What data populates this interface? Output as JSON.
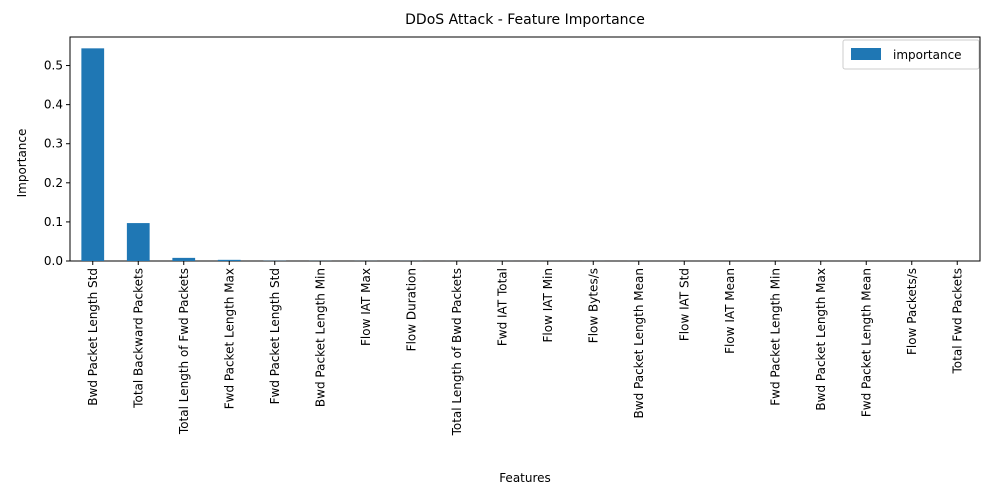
{
  "chart_data": {
    "type": "bar",
    "title": "DDoS Attack - Feature Importance",
    "xlabel": "Features",
    "ylabel": "Importance",
    "ylim": [
      0,
      0.573
    ],
    "yticks": [
      0.0,
      0.1,
      0.2,
      0.3,
      0.4,
      0.5
    ],
    "ytick_labels": [
      "0.0",
      "0.1",
      "0.2",
      "0.3",
      "0.4",
      "0.5"
    ],
    "grid": false,
    "legend": {
      "position": "top-right",
      "entries": [
        "importance"
      ]
    },
    "colors": {
      "bar": "#1f77b4"
    },
    "categories": [
      "Bwd Packet Length Std",
      "Total Backward Packets",
      "Total Length of Fwd Packets",
      "Fwd Packet Length Max",
      "Fwd Packet Length Std",
      "Bwd Packet Length Min",
      "Flow IAT Max",
      "Flow Duration",
      "Total Length of Bwd Packets",
      "Fwd IAT Total",
      "Flow IAT Min",
      "Flow Bytes/s",
      "Bwd Packet Length Mean",
      "Flow IAT Std",
      "Flow IAT Mean",
      "Fwd Packet Length Min",
      "Bwd Packet Length Max",
      "Fwd Packet Length Mean",
      "Flow Packets/s",
      "Total Fwd Packets"
    ],
    "series": [
      {
        "name": "importance",
        "values": [
          0.544,
          0.097,
          0.008,
          0.003,
          0.0005,
          0.0003,
          0.0002,
          0.0002,
          0.0001,
          0.0001,
          0.0001,
          0.0001,
          0.0001,
          0.0,
          0.0,
          0.0,
          0.0,
          0.0,
          0.0,
          0.0
        ]
      }
    ]
  }
}
